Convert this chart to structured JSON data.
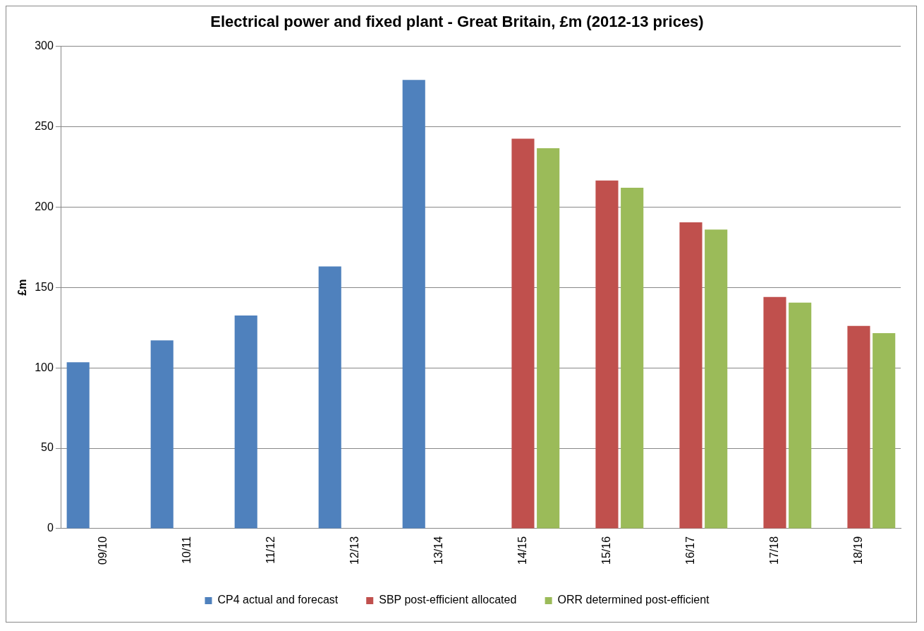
{
  "chart_data": {
    "type": "bar",
    "title": "Electrical power and fixed plant - Great Britain, £m (2012-13 prices)",
    "ylabel": "£m",
    "categories": [
      "09/10",
      "10/11",
      "11/12",
      "12/13",
      "13/14",
      "14/15",
      "15/16",
      "16/17",
      "17/18",
      "18/19"
    ],
    "series": [
      {
        "name": "CP4 actual and forecast",
        "color": "#4f81bd",
        "values": [
          103.5,
          117,
          132.5,
          163,
          279,
          null,
          null,
          null,
          null,
          null
        ]
      },
      {
        "name": "SBP post-efficient allocated",
        "color": "#c0504d",
        "values": [
          null,
          null,
          null,
          null,
          null,
          242.5,
          216.5,
          190.5,
          144,
          126
        ]
      },
      {
        "name": "ORR determined post-efficient",
        "color": "#9bbb59",
        "values": [
          null,
          null,
          null,
          null,
          null,
          236.5,
          212,
          186,
          140.5,
          121.5
        ]
      }
    ],
    "ylim": [
      0,
      300
    ],
    "yticks": [
      0,
      50,
      100,
      150,
      200,
      250,
      300
    ],
    "grid": "y",
    "legend": "bottom"
  }
}
